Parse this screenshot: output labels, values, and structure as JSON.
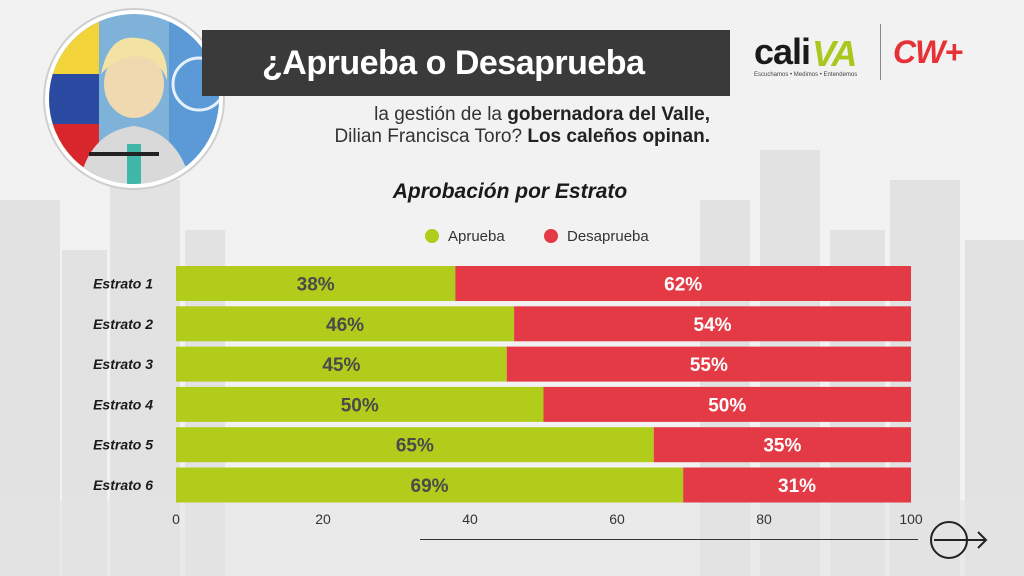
{
  "header": {
    "title": "¿Aprueba o Desaprueba",
    "subtitle_line1_pre": "la gestión de la ",
    "subtitle_line1_bold": "gobernadora del Valle,",
    "subtitle_line2_pre": "Dilian Francisca Toro? ",
    "subtitle_line2_bold": "Los caleños opinan."
  },
  "logos": {
    "cali_word": "cali",
    "cali_va": "VA",
    "cali_tagline": "Escuchamos • Medimos • Entendemos",
    "cw": "CW+"
  },
  "colors": {
    "aprueba": "#b2cc1c",
    "desaprueba": "#e33a45",
    "aprueba_text": "#4a4a4a",
    "desaprueba_text": "#ffffff"
  },
  "chart_data": {
    "type": "bar",
    "orientation": "horizontal",
    "stacked": true,
    "title": "Aprobación por Estrato",
    "categories": [
      "Estrato 1",
      "Estrato 2",
      "Estrato 3",
      "Estrato 4",
      "Estrato 5",
      "Estrato 6"
    ],
    "series": [
      {
        "name": "Aprueba",
        "values": [
          38,
          46,
          45,
          50,
          65,
          69
        ],
        "labels": [
          "38%",
          "46%",
          "45%",
          "50%",
          "65%",
          "69%"
        ]
      },
      {
        "name": "Desaprueba",
        "values": [
          62,
          54,
          55,
          50,
          35,
          31
        ],
        "labels": [
          "62%",
          "54%",
          "55%",
          "50%",
          "35%",
          "31%"
        ]
      }
    ],
    "xlim": [
      0,
      100
    ],
    "xticks": [
      0,
      20,
      40,
      60,
      80,
      100
    ],
    "legend": "top"
  }
}
